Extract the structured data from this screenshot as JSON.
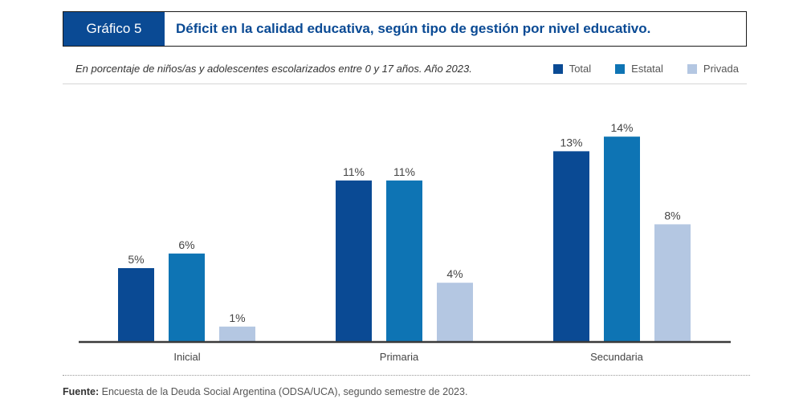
{
  "header": {
    "label": "Gráfico 5",
    "title": "Déficit en la calidad educativa, según tipo de gestión por nivel educativo."
  },
  "subtitle": "En porcentaje de niños/as y adolescentes escolarizados entre 0 y 17 años. Año 2023.",
  "colors": {
    "header_label_bg": "#0a4a94",
    "header_title": "#0a4a94"
  },
  "chart_data": {
    "type": "bar",
    "title": "Déficit en la calidad educativa, según tipo de gestión por nivel educativo.",
    "subtitle": "En porcentaje de niños/as y adolescentes escolarizados entre 0 y 17 años. Año 2023.",
    "categories": [
      "Inicial",
      "Primaria",
      "Secundaria"
    ],
    "series": [
      {
        "name": "Total",
        "color": "#0a4a94",
        "values": [
          5,
          11,
          13
        ],
        "labels": [
          "5%",
          "11%",
          "13%"
        ]
      },
      {
        "name": "Estatal",
        "color": "#0e74b4",
        "values": [
          6,
          11,
          14
        ],
        "labels": [
          "6%",
          "11%",
          "14%"
        ]
      },
      {
        "name": "Privada",
        "color": "#b4c7e2",
        "values": [
          1,
          4,
          8
        ],
        "labels": [
          "1%",
          "4%",
          "8%"
        ]
      }
    ],
    "unit": "%",
    "legend_position": "top-right",
    "grid": false,
    "ylim": [
      0,
      14
    ]
  },
  "source": {
    "label": "Fuente:",
    "text": " Encuesta de la Deuda Social Argentina (ODSA/UCA), segundo semestre de 2023."
  }
}
